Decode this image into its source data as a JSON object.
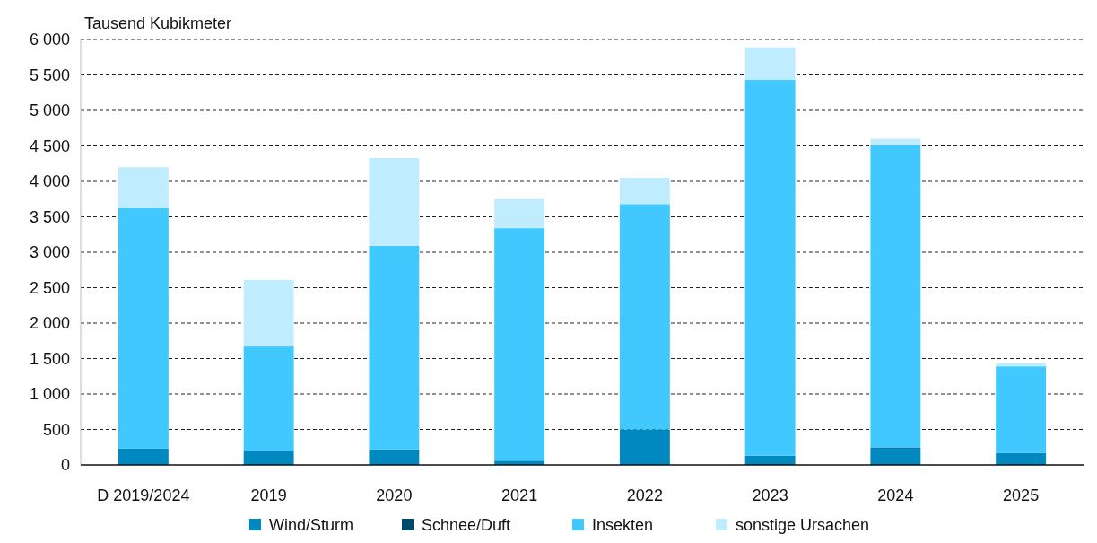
{
  "chart_data": {
    "type": "bar",
    "stacked": true,
    "ylabel": "Tausend Kubikmeter",
    "categories": [
      "D 2019/2024",
      "2019",
      "2020",
      "2021",
      "2022",
      "2023",
      "2024",
      "2025"
    ],
    "series": [
      {
        "name": "Wind/Sturm",
        "color": "#0088c0",
        "values": [
          230,
          200,
          220,
          60,
          500,
          130,
          230,
          170
        ]
      },
      {
        "name": "Schnee/Duft",
        "color": "#004a6e",
        "values": [
          0,
          0,
          0,
          0,
          0,
          0,
          10,
          0
        ]
      },
      {
        "name": "Insekten",
        "color": "#40c8ff",
        "values": [
          3390,
          1470,
          2870,
          3280,
          3180,
          5300,
          4270,
          1220
        ]
      },
      {
        "name": "sonstige Ursachen",
        "color": "#c0ecff",
        "values": [
          580,
          940,
          1240,
          410,
          370,
          460,
          90,
          50
        ]
      }
    ],
    "ylim": [
      0,
      6000
    ],
    "yticks": [
      0,
      {
        "value": 500,
        "label": "500"
      },
      {
        "value": 1000,
        "label": "1 000"
      },
      {
        "value": 1500,
        "label": "1 500"
      },
      {
        "value": 2000,
        "label": "2 000"
      },
      {
        "value": 2500,
        "label": "2 500"
      },
      {
        "value": 3000,
        "label": "3 000"
      },
      {
        "value": 3500,
        "label": "3 500"
      },
      {
        "value": 4000,
        "label": "4 000"
      },
      {
        "value": 4500,
        "label": "4 500"
      },
      {
        "value": 5000,
        "label": "5 000"
      },
      {
        "value": 5500,
        "label": "5 500"
      },
      {
        "value": 6000,
        "label": "6 000"
      }
    ],
    "grid": "y",
    "legend": "bottom"
  }
}
